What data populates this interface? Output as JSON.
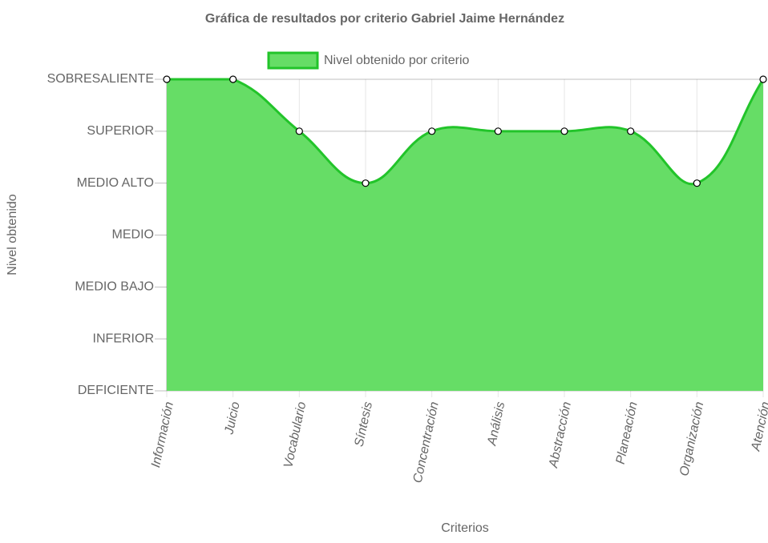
{
  "chart_data": {
    "type": "line",
    "title": "Gráfica de resultados por criterio Gabriel Jaime Hernández",
    "x_label": "Criterios",
    "y_label": "Nivel obtenido",
    "categories": [
      "Información",
      "Juicio",
      "Vocabulario",
      "Síntesis",
      "Concentración",
      "Análisis",
      "Abstracción",
      "Planeación",
      "Organización",
      "Atención"
    ],
    "series": [
      {
        "name": "Nivel obtenido por criterio",
        "color": "#22c42a",
        "fill": "#66dd66",
        "values": [
          6,
          6,
          5,
          4,
          5,
          5,
          5,
          5,
          4,
          6
        ]
      }
    ],
    "ylim": [
      0,
      6
    ],
    "yticks": [
      {
        "value": 0,
        "label": "DEFICIENTE"
      },
      {
        "value": 1,
        "label": "INFERIOR"
      },
      {
        "value": 2,
        "label": "MEDIO BAJO"
      },
      {
        "value": 3,
        "label": "MEDIO"
      },
      {
        "value": 4,
        "label": "MEDIO ALTO"
      },
      {
        "value": 5,
        "label": "SUPERIOR"
      },
      {
        "value": 6,
        "label": "SOBRESALIENTE"
      }
    ],
    "grid": true,
    "legend": "top"
  }
}
